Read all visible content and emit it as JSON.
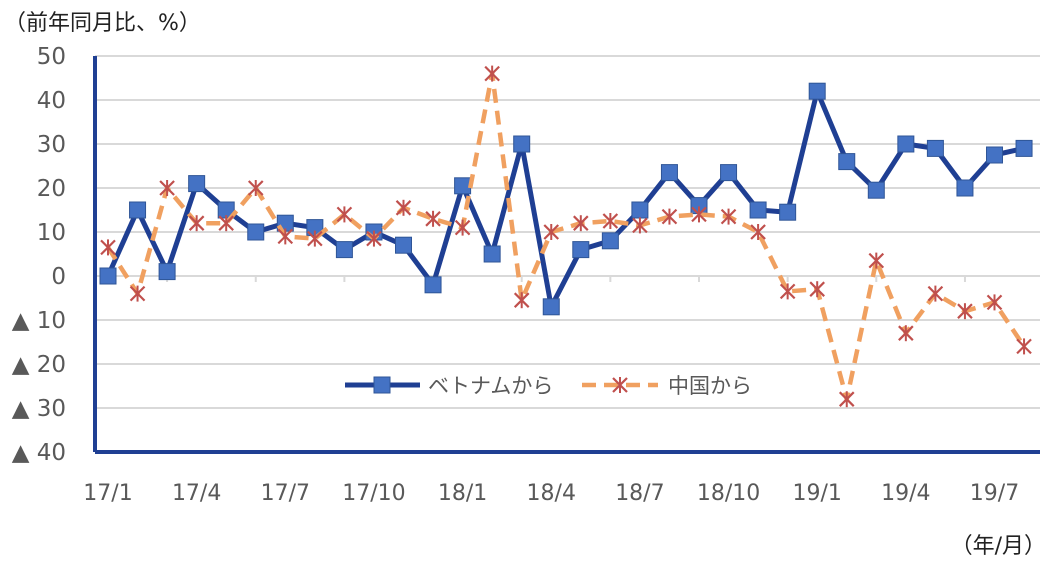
{
  "chart_data": {
    "type": "line",
    "ylabel": "（前年同月比、%）",
    "xlabel": "（年/月）",
    "ylim": [
      -40,
      50
    ],
    "yticks": [
      50,
      40,
      30,
      20,
      10,
      0,
      -10,
      -20,
      -30,
      -40
    ],
    "ytick_labels": [
      "50",
      "40",
      "30",
      "20",
      "10",
      "0",
      "▲ 10",
      "▲ 20",
      "▲ 30",
      "▲ 40"
    ],
    "x_tick_labels": [
      "17/1",
      "17/4",
      "17/7",
      "17/10",
      "18/1",
      "18/4",
      "18/7",
      "18/10",
      "19/1",
      "19/4",
      "19/7"
    ],
    "grid": true,
    "legend_position": "bottom-center (inside plot)",
    "series": [
      {
        "name": "ベトナムから",
        "color": "#1F3F93",
        "marker": "square",
        "values": [
          0,
          15,
          1,
          21,
          15,
          10,
          12,
          11,
          6,
          10,
          7,
          -2,
          20.5,
          5,
          30,
          -7,
          6,
          8,
          15,
          23.5,
          16,
          23.5,
          15,
          14.5,
          42,
          26,
          19.5,
          30,
          29,
          20,
          27.5,
          29
        ]
      },
      {
        "name": "中国から",
        "color": "#F0A060",
        "marker": "x",
        "values": [
          6.5,
          -4,
          20,
          12,
          12,
          20,
          9,
          8.5,
          14,
          8.5,
          15.5,
          13,
          11,
          46,
          -5.5,
          10,
          12,
          12.5,
          11.5,
          13.5,
          14,
          13.5,
          10,
          -3.5,
          -3,
          -28,
          3.5,
          -13,
          -4,
          -8,
          -6,
          -16
        ]
      }
    ]
  }
}
